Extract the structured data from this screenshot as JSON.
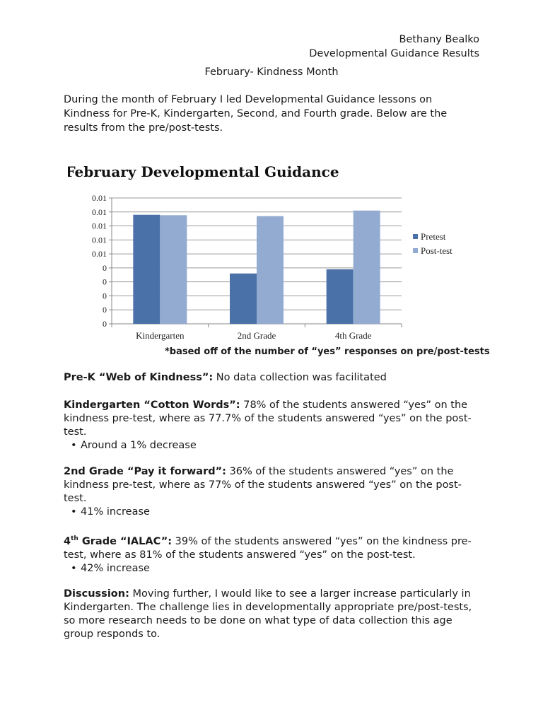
{
  "header": {
    "author": "Bethany Bealko",
    "doc_title": "Developmental Guidance Results"
  },
  "page_title": "February- Kindness Month",
  "intro": "During the month of February I led Developmental Guidance lessons on Kindness for Pre-K, Kindergarten, Second, and Fourth grade. Below are the results from the pre/post-tests.",
  "chart_data": {
    "type": "bar",
    "title": "February Developmental Guidance",
    "categories": [
      "Kindergarten",
      "2nd Grade",
      "4th Grade"
    ],
    "series": [
      {
        "name": "Pretest",
        "values": [
          0.78,
          0.36,
          0.39
        ]
      },
      {
        "name": "Post-test",
        "values": [
          0.777,
          0.77,
          0.81
        ]
      }
    ],
    "y_tick_labels": [
      "0",
      "0",
      "0",
      "0",
      "0",
      "0.01",
      "0.01",
      "0.01",
      "0.01",
      "0.01"
    ],
    "ylim": [
      0,
      0.9
    ],
    "grid": true,
    "legend_position": "right",
    "colors": {
      "Pretest": "#4a71a8",
      "Post-test": "#94abd1"
    }
  },
  "footnote": "*based off of the number of “yes” responses on pre/post-tests",
  "prek": {
    "label": "Pre-K “Web of Kindness”:",
    "text": " No data collection was facilitated"
  },
  "kinder": {
    "label": "Kindergarten “Cotton Words”:",
    "text": " 78% of the students answered “yes” on the kindness pre-test, where as 77.7% of the students answered “yes” on the post-test.",
    "bullet": "Around a 1% decrease"
  },
  "second": {
    "label": "2nd Grade “Pay it forward”:",
    "text": " 36% of the students answered “yes” on the kindness pre-test, where as 77% of the students answered “yes” on the post-test.",
    "bullet": "41% increase"
  },
  "fourth": {
    "label_num": "4",
    "label_sup": "th",
    "label_rest": " Grade “IALAC”:",
    "text": " 39% of the students answered “yes” on the kindness pre-test, where as 81% of the students answered “yes” on the post-test.",
    "bullet": "42% increase"
  },
  "discussion": {
    "label": "Discussion:",
    "text": " Moving further, I would like to see a larger increase particularly in Kindergarten. The challenge lies in developmentally appropriate pre/post-tests, so more research needs to be done on what type of data collection this age group responds to."
  }
}
